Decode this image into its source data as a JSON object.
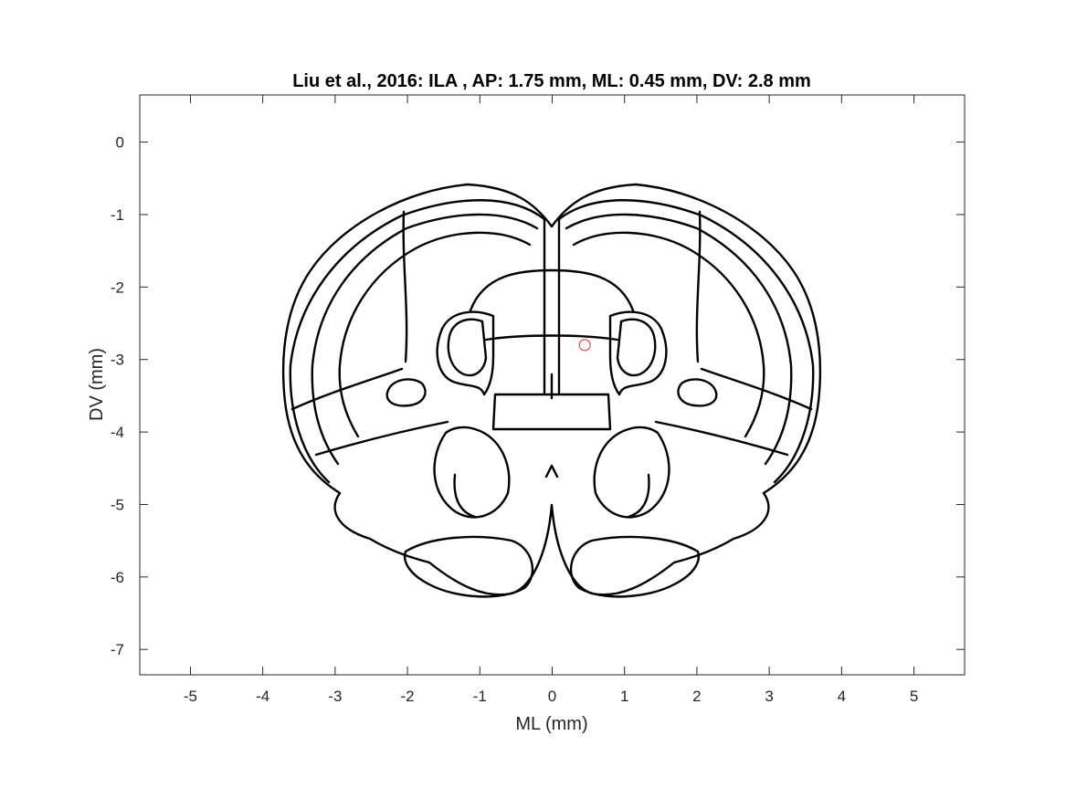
{
  "title": "Liu et al., 2016: ILA , AP: 1.75 mm, ML: 0.45 mm, DV: 2.8 mm",
  "xlabel": "ML (mm)",
  "ylabel": "DV (mm)",
  "xlim": [
    -5.7,
    5.7
  ],
  "ylim": [
    -7.35,
    0.65
  ],
  "xticks": [
    -5,
    -4,
    -3,
    -2,
    -1,
    0,
    1,
    2,
    3,
    4,
    5
  ],
  "yticks": [
    0,
    -1,
    -2,
    -3,
    -4,
    -5,
    -6,
    -7
  ],
  "marker": {
    "ml": 0.45,
    "dv": -2.8,
    "color": "#e8262b"
  },
  "colors": {
    "outline": "#000000",
    "axis": "#262626"
  }
}
